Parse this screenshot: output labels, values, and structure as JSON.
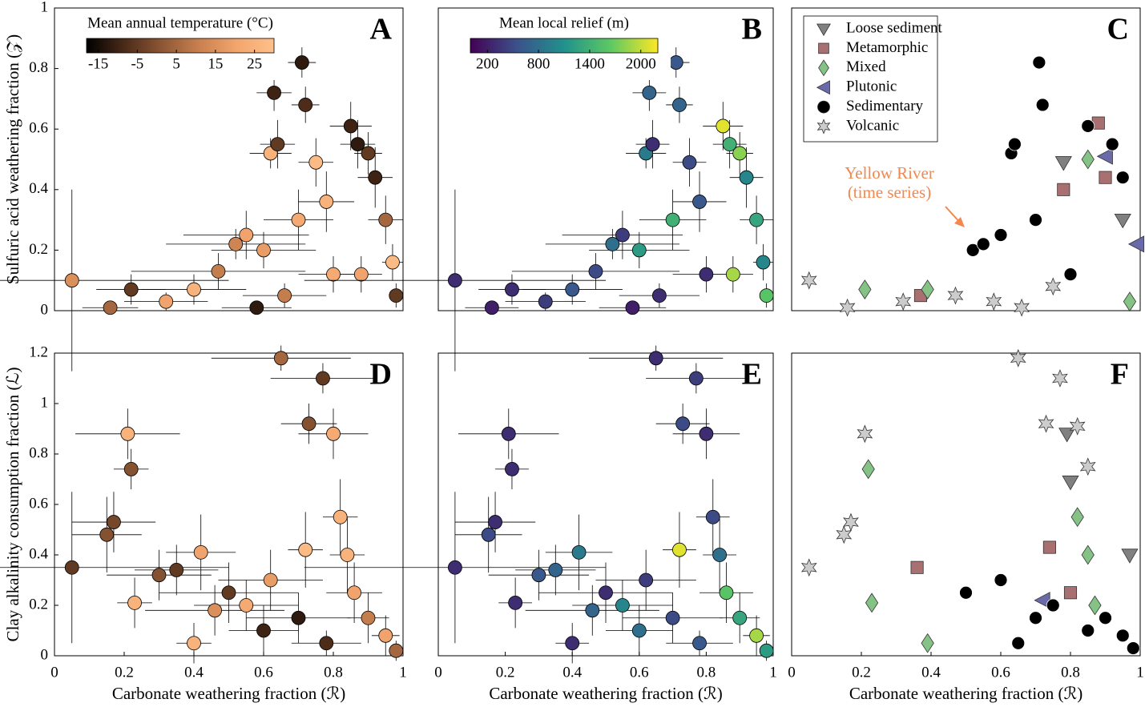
{
  "chart_data": [
    {
      "type": "scatter",
      "panel": "A",
      "ylabel": "Sulfuric acid weathering fraction (𝒵)",
      "xlim": [
        0,
        1
      ],
      "ylim": [
        0,
        1
      ],
      "yticks": [
        0,
        0.2,
        0.4,
        0.6,
        0.8,
        1
      ],
      "x": [
        0.05,
        0.16,
        0.22,
        0.32,
        0.4,
        0.47,
        0.52,
        0.55,
        0.6,
        0.62,
        0.64,
        0.63,
        0.71,
        0.72,
        0.7,
        0.75,
        0.78,
        0.8,
        0.85,
        0.87,
        0.9,
        0.92,
        0.95,
        0.97,
        0.98,
        0.88,
        0.66,
        0.58
      ],
      "y": [
        0.1,
        0.01,
        0.07,
        0.03,
        0.07,
        0.13,
        0.22,
        0.25,
        0.2,
        0.52,
        0.55,
        0.72,
        0.82,
        0.68,
        0.3,
        0.49,
        0.36,
        0.12,
        0.61,
        0.55,
        0.52,
        0.44,
        0.3,
        0.16,
        0.05,
        0.12,
        0.05,
        0.01
      ],
      "xerr": [
        0.45,
        0.08,
        0.1,
        0.12,
        0.15,
        0.25,
        0.2,
        0.18,
        0.15,
        0.06,
        0.05,
        0.05,
        0.04,
        0.04,
        0.1,
        0.05,
        0.08,
        0.1,
        0.06,
        0.05,
        0.04,
        0.05,
        0.05,
        0.03,
        0.02,
        0.06,
        0.12,
        0.1
      ],
      "yerr": [
        0.3,
        0.02,
        0.05,
        0.03,
        0.05,
        0.06,
        0.05,
        0.08,
        0.06,
        0.05,
        0.08,
        0.06,
        0.05,
        0.06,
        0.1,
        0.08,
        0.1,
        0.06,
        0.08,
        0.08,
        0.07,
        0.1,
        0.08,
        0.06,
        0.04,
        0.06,
        0.04,
        0.02
      ],
      "c": [
        15,
        5,
        -5,
        20,
        25,
        10,
        12,
        20,
        18,
        25,
        -5,
        -10,
        -12,
        -8,
        22,
        28,
        25,
        22,
        -10,
        -12,
        -5,
        -10,
        5,
        28,
        -5,
        20,
        10,
        -12
      ],
      "clim": [
        -18,
        30
      ],
      "colormap": [
        "#000000",
        "#4a2a18",
        "#8c5634",
        "#c9804f",
        "#f2a56d",
        "#ffc08a"
      ],
      "colorbar": {
        "title": "Mean annual temperature (°C)",
        "ticks": [
          -15,
          -5,
          5,
          15,
          25
        ]
      }
    },
    {
      "type": "scatter",
      "panel": "B",
      "xlim": [
        0,
        1
      ],
      "ylim": [
        0,
        1
      ],
      "x": [
        0.05,
        0.16,
        0.22,
        0.32,
        0.4,
        0.47,
        0.52,
        0.55,
        0.6,
        0.62,
        0.64,
        0.63,
        0.71,
        0.72,
        0.7,
        0.75,
        0.78,
        0.8,
        0.85,
        0.87,
        0.9,
        0.92,
        0.95,
        0.97,
        0.98,
        0.88,
        0.66,
        0.58
      ],
      "y": [
        0.1,
        0.01,
        0.07,
        0.03,
        0.07,
        0.13,
        0.22,
        0.25,
        0.2,
        0.52,
        0.55,
        0.72,
        0.82,
        0.68,
        0.3,
        0.49,
        0.36,
        0.12,
        0.61,
        0.55,
        0.52,
        0.44,
        0.3,
        0.16,
        0.05,
        0.12,
        0.05,
        0.01
      ],
      "xerr": [
        0.45,
        0.08,
        0.1,
        0.12,
        0.15,
        0.25,
        0.2,
        0.18,
        0.15,
        0.06,
        0.05,
        0.05,
        0.04,
        0.04,
        0.1,
        0.05,
        0.08,
        0.1,
        0.06,
        0.05,
        0.04,
        0.05,
        0.05,
        0.03,
        0.02,
        0.06,
        0.12,
        0.1
      ],
      "yerr": [
        0.3,
        0.02,
        0.05,
        0.03,
        0.05,
        0.06,
        0.05,
        0.08,
        0.06,
        0.05,
        0.08,
        0.06,
        0.05,
        0.06,
        0.1,
        0.08,
        0.1,
        0.06,
        0.08,
        0.08,
        0.07,
        0.1,
        0.08,
        0.06,
        0.04,
        0.06,
        0.04,
        0.02
      ],
      "c": [
        300,
        200,
        300,
        400,
        600,
        500,
        800,
        400,
        1200,
        900,
        300,
        700,
        600,
        700,
        1400,
        500,
        600,
        300,
        2100,
        1400,
        1800,
        1000,
        1300,
        1000,
        1600,
        1900,
        300,
        200
      ],
      "clim": [
        0,
        2200
      ],
      "colormap": [
        "#440154",
        "#3b528b",
        "#21918c",
        "#5ec962",
        "#fde725"
      ],
      "colorbar": {
        "title": "Mean local relief (m)",
        "ticks": [
          200,
          800,
          1400,
          2000
        ]
      }
    },
    {
      "type": "scatter",
      "panel": "C",
      "xlim": [
        0,
        1
      ],
      "ylim": [
        0,
        1
      ],
      "legend": "upper left",
      "annotation": [
        "Yellow River",
        "(time series)"
      ],
      "annotation_color": "#f0884f",
      "series": [
        {
          "name": "Loose sediment",
          "marker": "v",
          "color": "#808080",
          "x": [
            0.78,
            0.95
          ],
          "y": [
            0.49,
            0.3
          ]
        },
        {
          "name": "Metamorphic",
          "marker": "s",
          "color": "#a87070",
          "x": [
            0.37,
            0.88,
            0.9,
            0.78
          ],
          "y": [
            0.05,
            0.62,
            0.44,
            0.4
          ]
        },
        {
          "name": "Mixed",
          "marker": "d",
          "color": "#85c285",
          "x": [
            0.21,
            0.39,
            0.85,
            0.97
          ],
          "y": [
            0.07,
            0.07,
            0.5,
            0.03
          ]
        },
        {
          "name": "Plutonic",
          "marker": "<",
          "color": "#6a6aaa",
          "x": [
            0.9,
            0.99
          ],
          "y": [
            0.51,
            0.22
          ]
        },
        {
          "name": "Sedimentary",
          "marker": "o",
          "color": "#000000",
          "x": [
            0.63,
            0.64,
            0.71,
            0.72,
            0.7,
            0.85,
            0.92,
            0.95,
            0.8,
            0.6,
            0.52,
            0.55
          ],
          "y": [
            0.52,
            0.55,
            0.82,
            0.68,
            0.3,
            0.61,
            0.55,
            0.44,
            0.12,
            0.25,
            0.2,
            0.22
          ]
        },
        {
          "name": "Volcanic",
          "marker": "*",
          "color": "#cccccc",
          "x": [
            0.05,
            0.16,
            0.32,
            0.47,
            0.58,
            0.66,
            0.75
          ],
          "y": [
            0.1,
            0.01,
            0.03,
            0.05,
            0.03,
            0.01,
            0.08
          ]
        }
      ]
    },
    {
      "type": "scatter",
      "panel": "D",
      "ylabel": "Clay alkalinity consumption fraction (ℒ)",
      "xlabel": "Carbonate weathering fraction (ℛ)",
      "xlim": [
        0,
        1
      ],
      "ylim": [
        0,
        1.2
      ],
      "xticks": [
        0,
        0.2,
        0.4,
        0.6,
        0.8,
        1
      ],
      "yticks": [
        0,
        0.2,
        0.4,
        0.6,
        0.8,
        1,
        1.2
      ],
      "x": [
        0.05,
        0.15,
        0.17,
        0.21,
        0.22,
        0.23,
        0.3,
        0.35,
        0.4,
        0.42,
        0.5,
        0.55,
        0.6,
        0.65,
        0.7,
        0.72,
        0.73,
        0.77,
        0.8,
        0.82,
        0.84,
        0.86,
        0.9,
        0.95,
        0.98,
        0.78,
        0.62,
        0.46
      ],
      "y": [
        0.35,
        0.48,
        0.53,
        0.88,
        0.74,
        0.21,
        0.32,
        0.34,
        0.05,
        0.41,
        0.25,
        0.2,
        0.1,
        1.18,
        0.15,
        0.42,
        0.92,
        1.1,
        0.88,
        0.55,
        0.4,
        0.25,
        0.15,
        0.08,
        0.02,
        0.05,
        0.3,
        0.18
      ],
      "xerr": [
        0.45,
        0.1,
        0.12,
        0.15,
        0.05,
        0.05,
        0.15,
        0.12,
        0.05,
        0.1,
        0.2,
        0.15,
        0.1,
        0.2,
        0.15,
        0.05,
        0.08,
        0.15,
        0.1,
        0.05,
        0.05,
        0.08,
        0.06,
        0.04,
        0.02,
        0.1,
        0.15,
        0.2
      ],
      "yerr": [
        0.3,
        0.15,
        0.12,
        0.1,
        0.08,
        0.1,
        0.1,
        0.1,
        0.08,
        0.15,
        0.12,
        0.1,
        0.1,
        0.05,
        0.1,
        0.15,
        0.08,
        0.06,
        0.1,
        0.15,
        0.15,
        0.12,
        0.1,
        0.08,
        0.04,
        0.05,
        0.12,
        0.1
      ],
      "c": [
        -5,
        0,
        -2,
        25,
        0,
        25,
        0,
        -5,
        25,
        20,
        -5,
        22,
        -10,
        5,
        -12,
        28,
        0,
        -5,
        22,
        25,
        25,
        20,
        10,
        20,
        5,
        -8,
        18,
        15
      ],
      "clim": [
        -18,
        30
      ],
      "colormap": [
        "#000000",
        "#4a2a18",
        "#8c5634",
        "#c9804f",
        "#f2a56d",
        "#ffc08a"
      ]
    },
    {
      "type": "scatter",
      "panel": "E",
      "xlabel": "Carbonate weathering fraction (ℛ)",
      "xlim": [
        0,
        1
      ],
      "ylim": [
        0,
        1.2
      ],
      "xticks": [
        0,
        0.2,
        0.4,
        0.6,
        0.8,
        1
      ],
      "x": [
        0.05,
        0.15,
        0.17,
        0.21,
        0.22,
        0.23,
        0.3,
        0.35,
        0.4,
        0.42,
        0.5,
        0.55,
        0.6,
        0.65,
        0.7,
        0.72,
        0.73,
        0.77,
        0.8,
        0.82,
        0.84,
        0.86,
        0.9,
        0.95,
        0.98,
        0.78,
        0.62,
        0.46
      ],
      "y": [
        0.35,
        0.48,
        0.53,
        0.88,
        0.74,
        0.21,
        0.32,
        0.34,
        0.05,
        0.41,
        0.25,
        0.2,
        0.1,
        1.18,
        0.15,
        0.42,
        0.92,
        1.1,
        0.88,
        0.55,
        0.4,
        0.25,
        0.15,
        0.08,
        0.02,
        0.05,
        0.3,
        0.18
      ],
      "xerr": [
        0.45,
        0.1,
        0.12,
        0.15,
        0.05,
        0.05,
        0.15,
        0.12,
        0.05,
        0.1,
        0.2,
        0.15,
        0.1,
        0.2,
        0.15,
        0.05,
        0.08,
        0.15,
        0.1,
        0.05,
        0.05,
        0.08,
        0.06,
        0.04,
        0.02,
        0.1,
        0.15,
        0.2
      ],
      "yerr": [
        0.3,
        0.15,
        0.12,
        0.1,
        0.08,
        0.1,
        0.1,
        0.1,
        0.08,
        0.15,
        0.12,
        0.1,
        0.1,
        0.05,
        0.1,
        0.15,
        0.08,
        0.06,
        0.1,
        0.15,
        0.15,
        0.12,
        0.1,
        0.08,
        0.04,
        0.05,
        0.12,
        0.1
      ],
      "c": [
        300,
        500,
        300,
        300,
        300,
        300,
        600,
        700,
        300,
        900,
        300,
        1000,
        800,
        300,
        500,
        2100,
        500,
        400,
        300,
        500,
        800,
        1600,
        1300,
        1900,
        1200,
        600,
        400,
        700
      ],
      "clim": [
        0,
        2200
      ],
      "colormap": [
        "#440154",
        "#3b528b",
        "#21918c",
        "#5ec962",
        "#fde725"
      ]
    },
    {
      "type": "scatter",
      "panel": "F",
      "xlabel": "Carbonate weathering fraction (ℛ)",
      "xlim": [
        0,
        1
      ],
      "ylim": [
        0,
        1.2
      ],
      "xticks": [
        0,
        0.2,
        0.4,
        0.6,
        0.8,
        1
      ],
      "series": [
        {
          "name": "Loose sediment",
          "marker": "v",
          "color": "#808080",
          "x": [
            0.79,
            0.8,
            0.97
          ],
          "y": [
            0.88,
            0.69,
            0.4
          ]
        },
        {
          "name": "Metamorphic",
          "marker": "s",
          "color": "#a87070",
          "x": [
            0.36,
            0.74,
            0.8
          ],
          "y": [
            0.35,
            0.43,
            0.25
          ]
        },
        {
          "name": "Mixed",
          "marker": "d",
          "color": "#85c285",
          "x": [
            0.22,
            0.23,
            0.39,
            0.82,
            0.85,
            0.87
          ],
          "y": [
            0.74,
            0.21,
            0.05,
            0.55,
            0.4,
            0.2
          ]
        },
        {
          "name": "Plutonic",
          "marker": "<",
          "color": "#6a6aaa",
          "x": [
            0.72
          ],
          "y": [
            0.22
          ]
        },
        {
          "name": "Sedimentary",
          "marker": "o",
          "color": "#000000",
          "x": [
            0.5,
            0.6,
            0.7,
            0.75,
            0.85,
            0.9,
            0.95,
            0.98,
            0.65
          ],
          "y": [
            0.25,
            0.3,
            0.15,
            0.2,
            0.1,
            0.15,
            0.08,
            0.03,
            0.05
          ]
        },
        {
          "name": "Volcanic",
          "marker": "*",
          "color": "#cccccc",
          "x": [
            0.05,
            0.15,
            0.17,
            0.21,
            0.65,
            0.73,
            0.77,
            0.82,
            0.85
          ],
          "y": [
            0.35,
            0.48,
            0.53,
            0.88,
            1.18,
            0.92,
            1.1,
            0.91,
            0.75
          ]
        }
      ]
    }
  ]
}
